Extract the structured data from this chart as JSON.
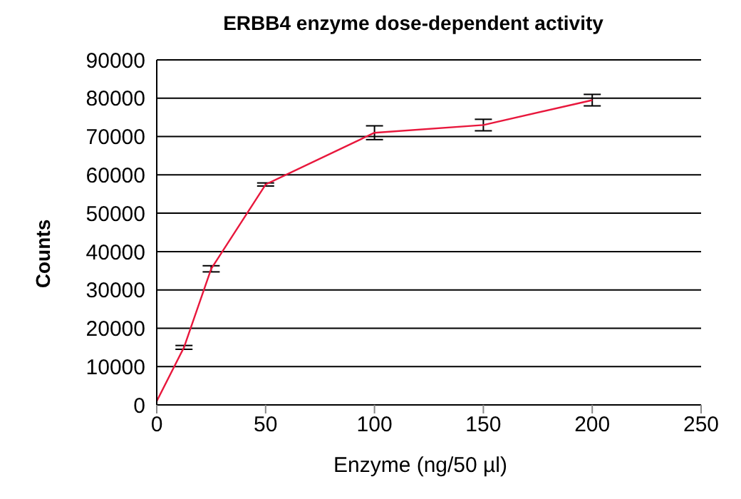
{
  "chart_data": {
    "type": "line",
    "title": "ERBB4 enzyme dose-dependent activity",
    "xlabel": "Enzyme (ng/50 µl)",
    "ylabel": "Counts",
    "x": [
      0,
      12.5,
      25,
      50,
      100,
      150,
      200
    ],
    "series": [
      {
        "color": "#e8173c",
        "values": [
          1000,
          15000,
          35500,
          57500,
          71000,
          73000,
          79500
        ],
        "errors": [
          null,
          500,
          800,
          400,
          1800,
          1500,
          1500
        ]
      }
    ],
    "xlim": [
      0,
      250
    ],
    "xticks": [
      0,
      50,
      100,
      150,
      200,
      250
    ],
    "ylim": [
      0,
      90000
    ],
    "yticks": [
      0,
      10000,
      20000,
      30000,
      40000,
      50000,
      60000,
      70000,
      80000,
      90000
    ],
    "grid": "y",
    "marker": "none",
    "line_style": "solid"
  }
}
